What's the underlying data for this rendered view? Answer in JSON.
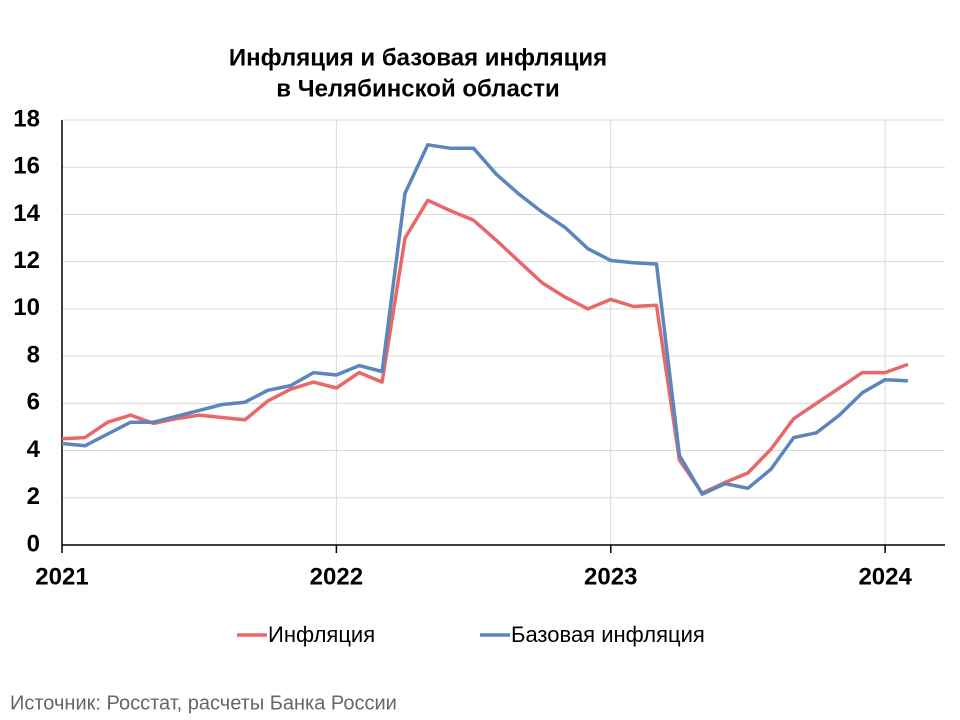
{
  "chart_data": {
    "type": "line",
    "title": [
      "Инфляция и базовая инфляция",
      "в Челябинской области"
    ],
    "categories": [
      "2021",
      null,
      null,
      null,
      null,
      null,
      null,
      null,
      null,
      null,
      null,
      null,
      "2022",
      null,
      null,
      null,
      null,
      null,
      null,
      null,
      null,
      null,
      null,
      null,
      "2023",
      null,
      null,
      null,
      null,
      null,
      null,
      null,
      null,
      null,
      null,
      null,
      "2024",
      null
    ],
    "series": [
      {
        "name": "Инфляция",
        "color": "#e8686a",
        "values": [
          4.5,
          4.55,
          5.2,
          5.5,
          5.15,
          5.35,
          5.5,
          5.4,
          5.3,
          6.1,
          6.6,
          6.9,
          6.65,
          7.3,
          6.9,
          13.0,
          14.6,
          14.15,
          13.75,
          12.9,
          12.0,
          11.1,
          10.5,
          10.0,
          10.4,
          10.1,
          10.15,
          3.6,
          2.2,
          2.65,
          3.05,
          4.05,
          5.35,
          6.0,
          6.65,
          7.3,
          7.3,
          7.65
        ]
      },
      {
        "name": "Базовая инфляция",
        "color": "#5b86bd",
        "values": [
          4.3,
          4.2,
          4.7,
          5.2,
          5.2,
          5.45,
          5.7,
          5.95,
          6.05,
          6.55,
          6.75,
          7.3,
          7.2,
          7.6,
          7.35,
          14.9,
          16.95,
          16.8,
          16.8,
          15.7,
          14.85,
          14.1,
          13.45,
          12.55,
          12.05,
          11.95,
          11.9,
          3.8,
          2.15,
          2.6,
          2.4,
          3.2,
          4.55,
          4.75,
          5.5,
          6.45,
          7.0,
          6.95
        ]
      }
    ],
    "ylim": [
      0,
      18
    ],
    "yticks": [
      0,
      2,
      4,
      6,
      8,
      10,
      12,
      14,
      16,
      18
    ],
    "grid": true,
    "legend": "bottom",
    "source": "Источник: Росстат, расчеты Банка России"
  }
}
